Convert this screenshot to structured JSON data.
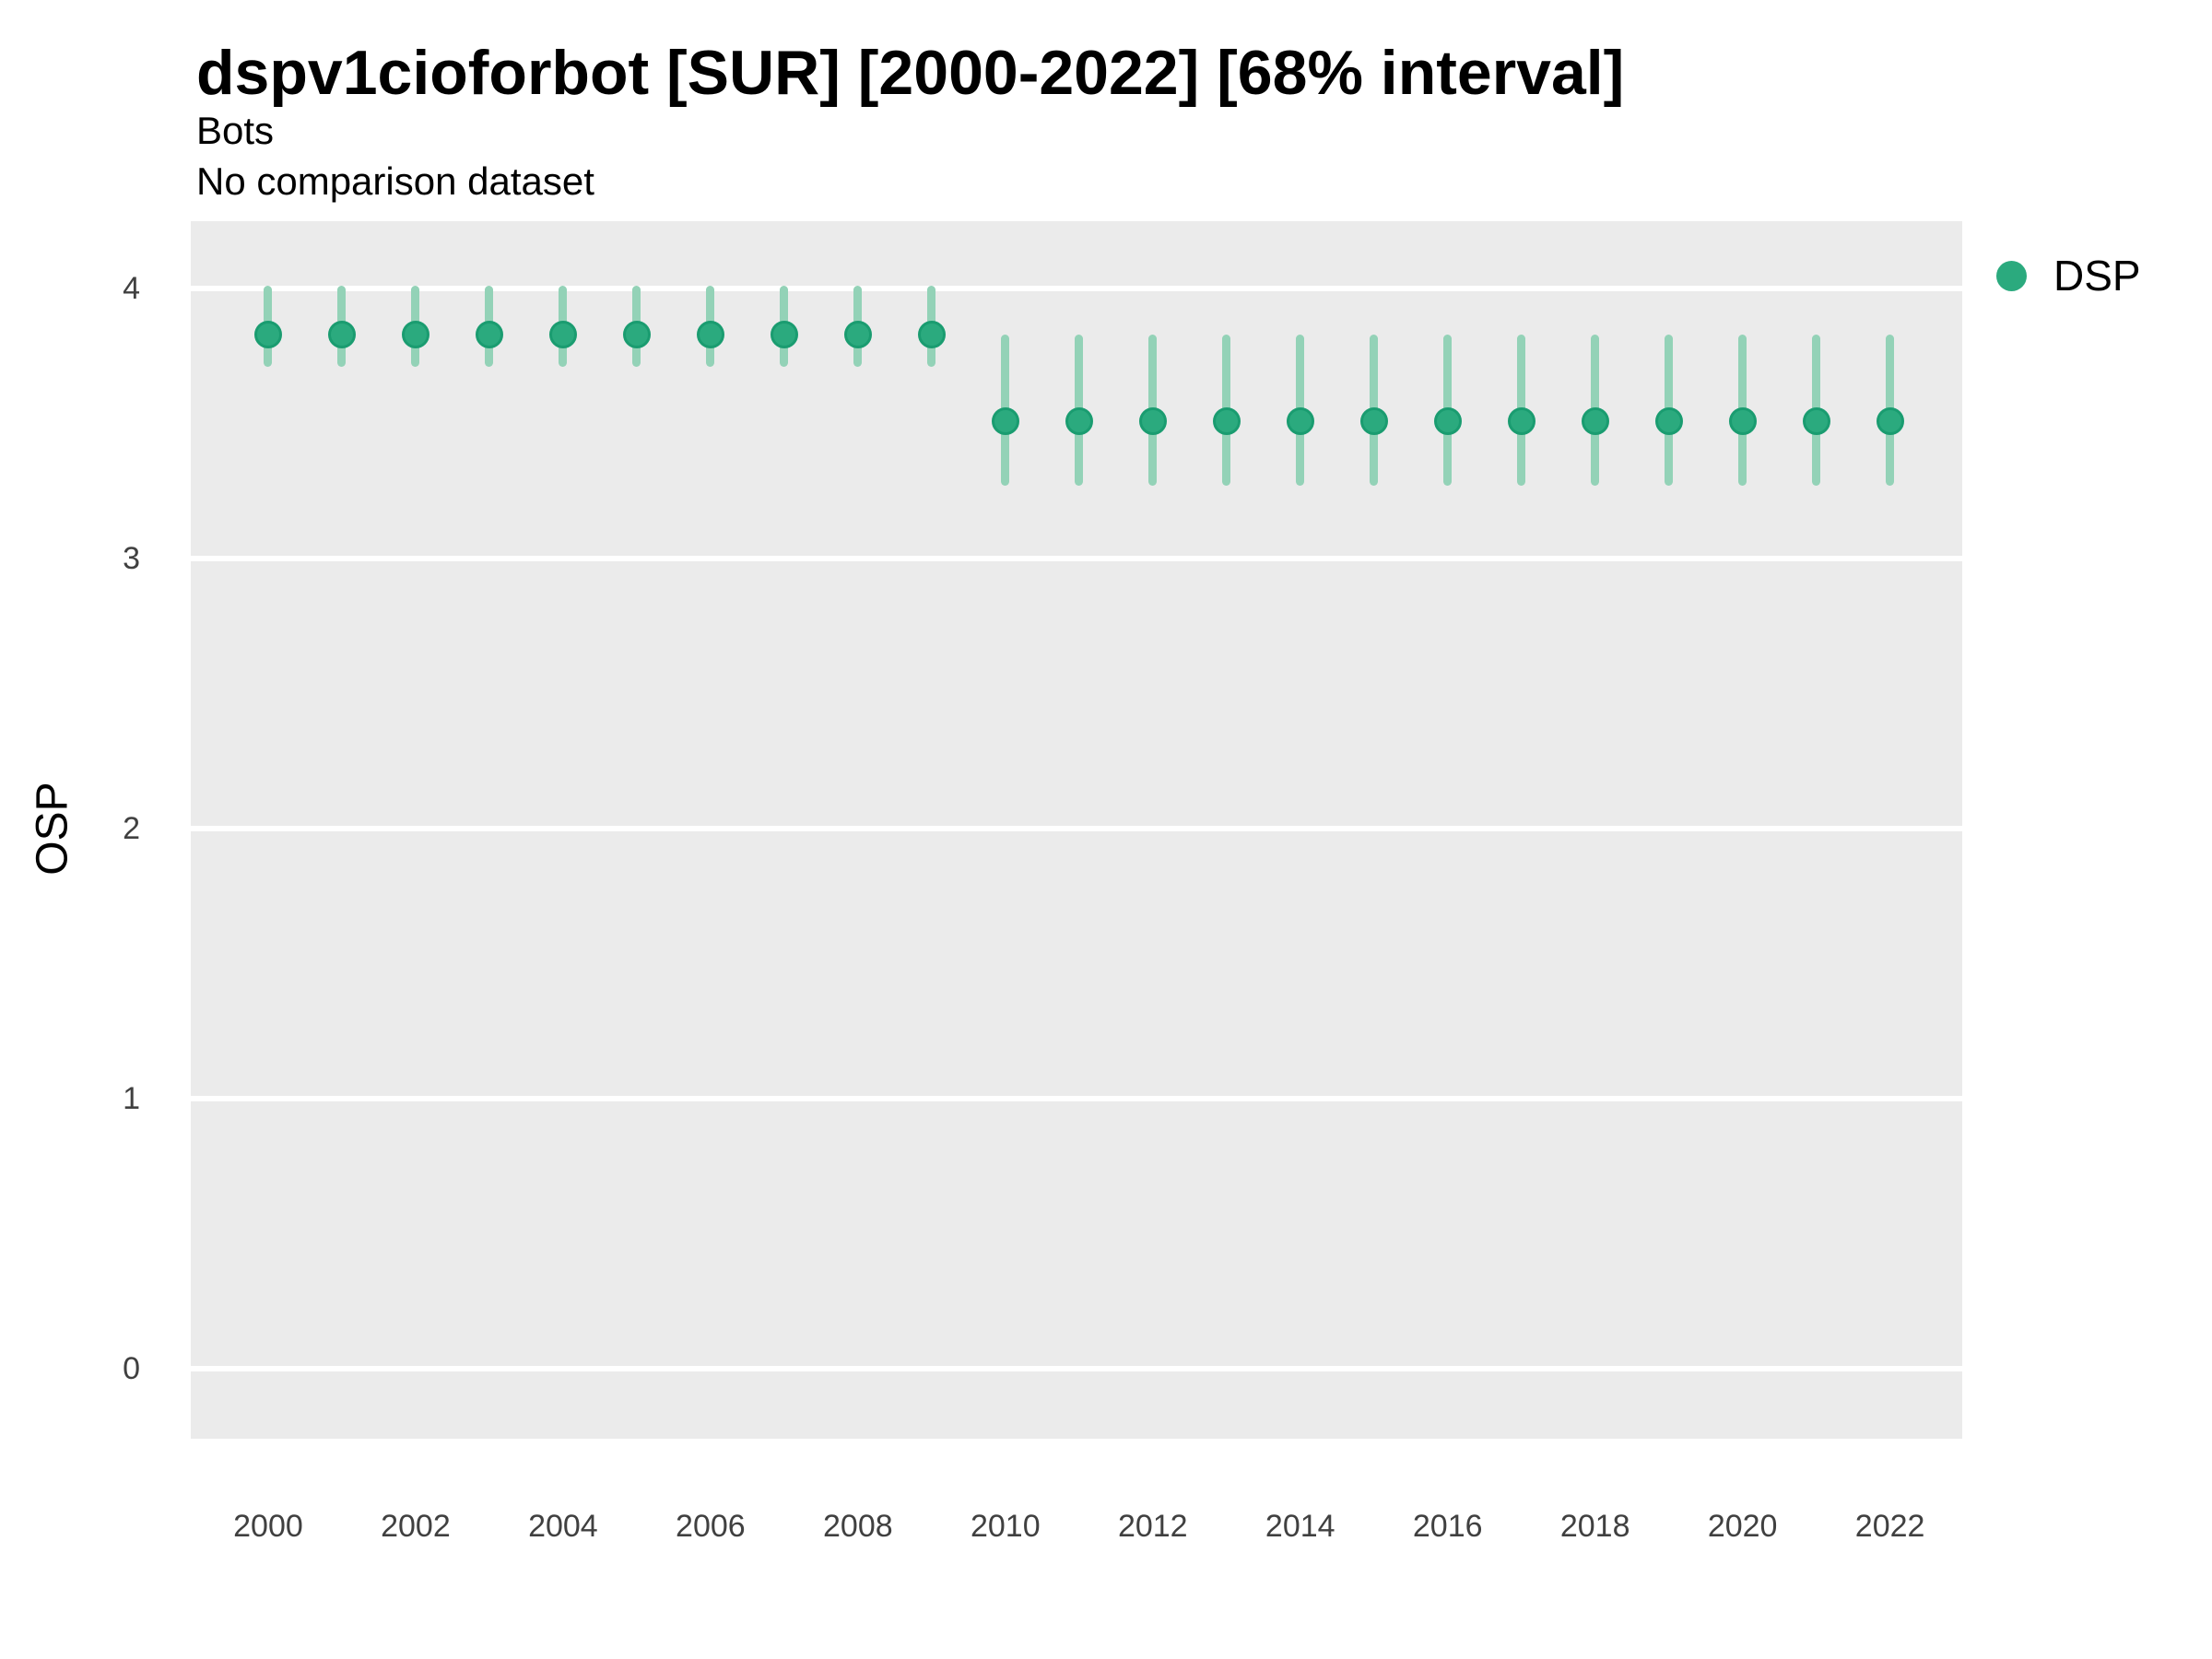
{
  "header": {
    "title": "dspv1cioforbot [SUR] [2000-2022] [68% interval]",
    "subtitle": "Bots",
    "comparison_note": "No comparison dataset"
  },
  "legend": {
    "position": "right-top",
    "items": [
      {
        "label": "DSP",
        "marker": "circle-icon",
        "color": "#2baa7e"
      }
    ]
  },
  "colors": {
    "panel_background": "#ebebeb",
    "gridline": "#ffffff",
    "point_fill": "#2baa7e",
    "point_stroke": "#1a9c70",
    "interval_bar": "#93d2b7",
    "tick_text": "#404040",
    "text": "#000000",
    "page_background": "#ffffff"
  },
  "chart_data": {
    "type": "scatter",
    "marker": "point-with-68pct-interval",
    "title": "dspv1cioforbot [SUR] [2000-2022] [68% interval]",
    "subtitle": "Bots",
    "note": "No comparison dataset",
    "xlabel": "",
    "ylabel": "OSP",
    "interval": "68%",
    "grid": "major-horizontal-white-on-grey",
    "legend_position": "right-top",
    "xlim": [
      1998.95,
      2022.98
    ],
    "ylim": [
      -0.26,
      4.25
    ],
    "xticks": [
      2000,
      2002,
      2004,
      2006,
      2008,
      2010,
      2012,
      2014,
      2016,
      2018,
      2020,
      2022
    ],
    "yticks": [
      0,
      1,
      2,
      3,
      4
    ],
    "series": [
      {
        "name": "DSP",
        "x": [
          2000,
          2001,
          2002,
          2003,
          2004,
          2005,
          2006,
          2007,
          2008,
          2009,
          2010,
          2011,
          2012,
          2013,
          2014,
          2015,
          2016,
          2017,
          2018,
          2019,
          2020,
          2021,
          2022
        ],
        "y": [
          3.83,
          3.83,
          3.83,
          3.83,
          3.83,
          3.83,
          3.83,
          3.83,
          3.83,
          3.83,
          3.51,
          3.51,
          3.51,
          3.51,
          3.51,
          3.51,
          3.51,
          3.51,
          3.51,
          3.51,
          3.51,
          3.51,
          3.51
        ],
        "y_lower": [
          3.71,
          3.71,
          3.71,
          3.71,
          3.71,
          3.71,
          3.71,
          3.71,
          3.71,
          3.71,
          3.27,
          3.27,
          3.27,
          3.27,
          3.27,
          3.27,
          3.27,
          3.27,
          3.27,
          3.27,
          3.27,
          3.27,
          3.27
        ],
        "y_upper": [
          4.01,
          4.01,
          4.01,
          4.01,
          4.01,
          4.01,
          4.01,
          4.01,
          4.01,
          4.01,
          3.83,
          3.83,
          3.83,
          3.83,
          3.83,
          3.83,
          3.83,
          3.83,
          3.83,
          3.83,
          3.83,
          3.83,
          3.83
        ]
      }
    ]
  }
}
